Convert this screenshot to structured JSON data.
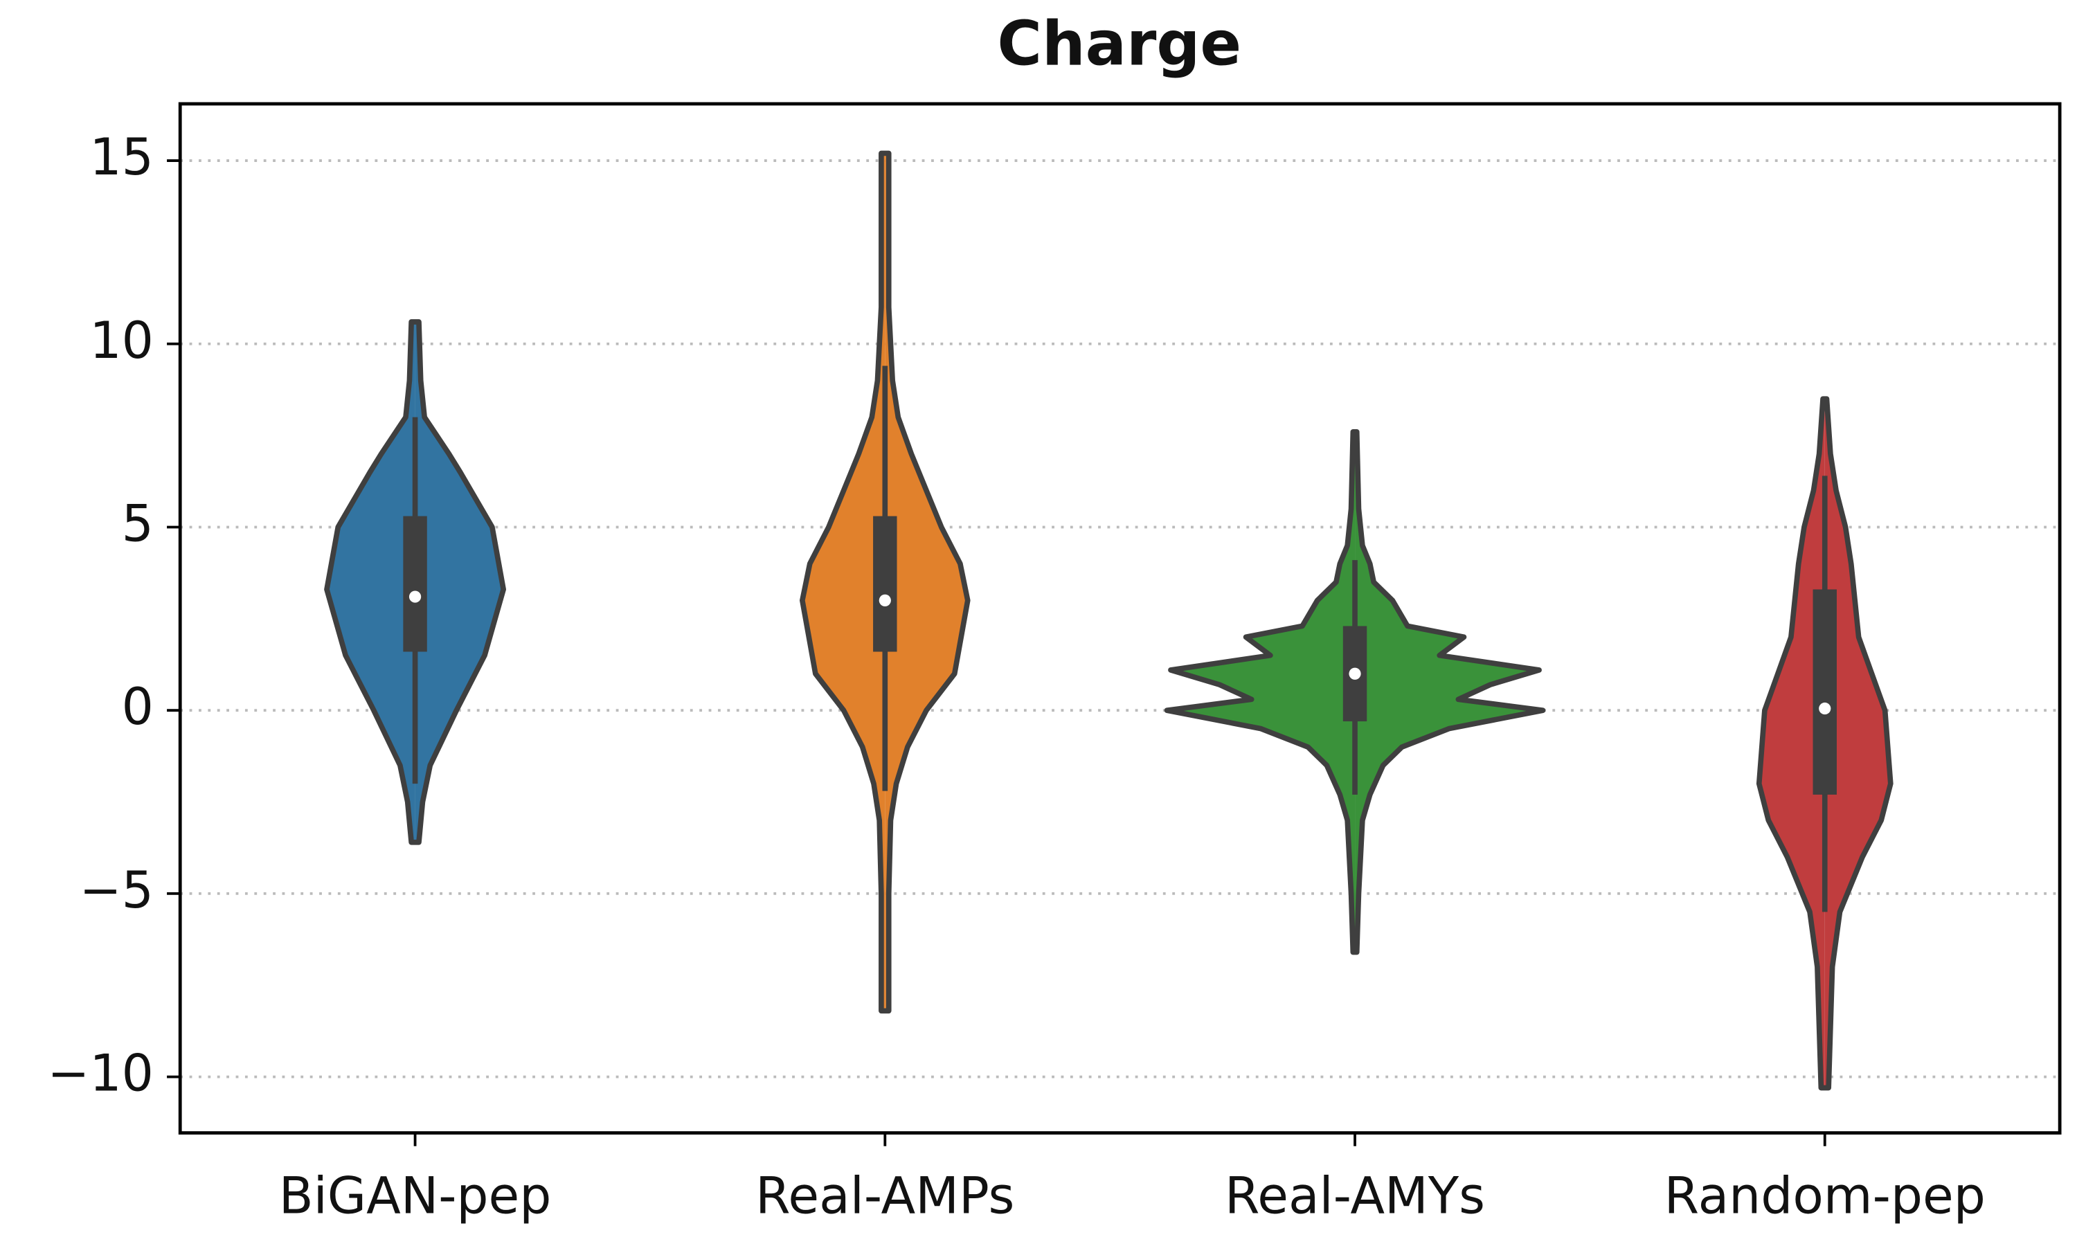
{
  "chart_data": {
    "type": "violin",
    "title": "Charge",
    "categories": [
      "BiGAN-pep",
      "Real-AMPs",
      "Real-AMYs",
      "Random-pep"
    ],
    "ylim": [
      -11.53,
      16.55
    ],
    "yticks": [
      {
        "value": -10,
        "label": "−10"
      },
      {
        "value": -5,
        "label": "−5"
      },
      0,
      5,
      10,
      15
    ],
    "grid": true,
    "series": [
      {
        "name": "BiGAN-pep",
        "color": "#3274a1",
        "density_y": [
          -3.6,
          -2.5,
          -1.5,
          0,
          1.5,
          3.3,
          5,
          6.5,
          7,
          8,
          9,
          10.6
        ],
        "density": [
          0.02,
          0.04,
          0.08,
          0.22,
          0.37,
          0.47,
          0.41,
          0.24,
          0.18,
          0.05,
          0.03,
          0.02
        ],
        "whisker_low": -2,
        "q1": 1.6,
        "median": 3.1,
        "q3": 5.3,
        "whisker_high": 8
      },
      {
        "name": "Real-AMPs",
        "color": "#e1812c",
        "density_y": [
          -8.2,
          -5,
          -3,
          -2,
          -1,
          0,
          1,
          3,
          4,
          5,
          6,
          7,
          8,
          9,
          11,
          15.2
        ],
        "density": [
          0.02,
          0.02,
          0.03,
          0.06,
          0.12,
          0.22,
          0.37,
          0.44,
          0.4,
          0.3,
          0.22,
          0.14,
          0.07,
          0.04,
          0.02,
          0.02
        ],
        "whisker_low": -2.2,
        "q1": 1.6,
        "median": 3.0,
        "q3": 5.3,
        "whisker_high": 9.4
      },
      {
        "name": "Real-AMYs",
        "color": "#3a923a",
        "density_y": [
          -6.6,
          -5,
          -3,
          -2.3,
          -1.5,
          -1,
          -0.5,
          0,
          0.3,
          0.7,
          1.1,
          1.5,
          2,
          2.3,
          3,
          3.5,
          4,
          4.5,
          5.5,
          7.6
        ],
        "density": [
          0.01,
          0.02,
          0.04,
          0.08,
          0.15,
          0.25,
          0.5,
          1.0,
          0.55,
          0.72,
          0.98,
          0.45,
          0.58,
          0.28,
          0.2,
          0.1,
          0.08,
          0.04,
          0.02,
          0.01
        ],
        "whisker_low": -2.3,
        "q1": -0.3,
        "median": 1.0,
        "q3": 2.3,
        "whisker_high": 4.1
      },
      {
        "name": "Random-pep",
        "color": "#c03d3e",
        "density_y": [
          -10.3,
          -7,
          -5.5,
          -4,
          -3,
          -2,
          0,
          1,
          2,
          3,
          4,
          5,
          6,
          7,
          8.5
        ],
        "density": [
          0.02,
          0.04,
          0.08,
          0.2,
          0.3,
          0.35,
          0.32,
          0.25,
          0.18,
          0.16,
          0.14,
          0.11,
          0.06,
          0.03,
          0.01
        ],
        "whisker_low": -5.5,
        "q1": -2.3,
        "median": 0.05,
        "q3": 3.3,
        "whisker_high": 6.4
      }
    ]
  }
}
